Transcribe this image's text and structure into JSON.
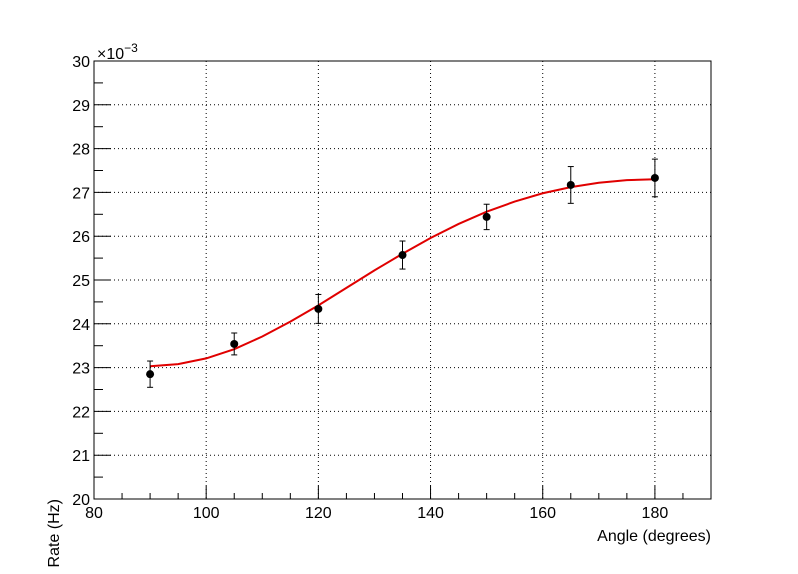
{
  "chart_data": {
    "type": "scatter",
    "x_label": "Angle (degrees)",
    "y_label": "Rate (Hz)",
    "y_exponent_label": {
      "base": "×10",
      "exponent": "−3"
    },
    "xlim": [
      80,
      190
    ],
    "ylim": [
      20,
      30
    ],
    "xticks": [
      80,
      100,
      120,
      140,
      160,
      180
    ],
    "yticks": [
      20,
      21,
      22,
      23,
      24,
      25,
      26,
      27,
      28,
      29,
      30
    ],
    "xminorticks": [
      85,
      90,
      95,
      105,
      110,
      115,
      125,
      130,
      135,
      145,
      150,
      155,
      165,
      170,
      175,
      185
    ],
    "yminorticks": [
      20.5,
      21.5,
      22.5,
      23.5,
      24.5,
      25.5,
      26.5,
      27.5,
      28.5,
      29.5
    ],
    "grid": true,
    "points": {
      "color": "#000000",
      "x": [
        90,
        105,
        120,
        135,
        150,
        165,
        180
      ],
      "values": [
        22.85,
        23.54,
        24.34,
        25.57,
        26.44,
        27.17,
        27.33
      ],
      "errors": [
        0.3,
        0.25,
        0.33,
        0.32,
        0.29,
        0.42,
        0.43
      ]
    },
    "fit": {
      "color": "#e00000",
      "x": [
        90,
        95,
        100,
        105,
        110,
        115,
        120,
        125,
        130,
        135,
        140,
        145,
        150,
        155,
        160,
        165,
        170,
        175,
        180
      ],
      "values": [
        23.03,
        23.08,
        23.21,
        23.42,
        23.71,
        24.05,
        24.42,
        24.82,
        25.22,
        25.6,
        25.96,
        26.28,
        26.56,
        26.79,
        26.98,
        27.12,
        27.22,
        27.28,
        27.3
      ]
    }
  }
}
